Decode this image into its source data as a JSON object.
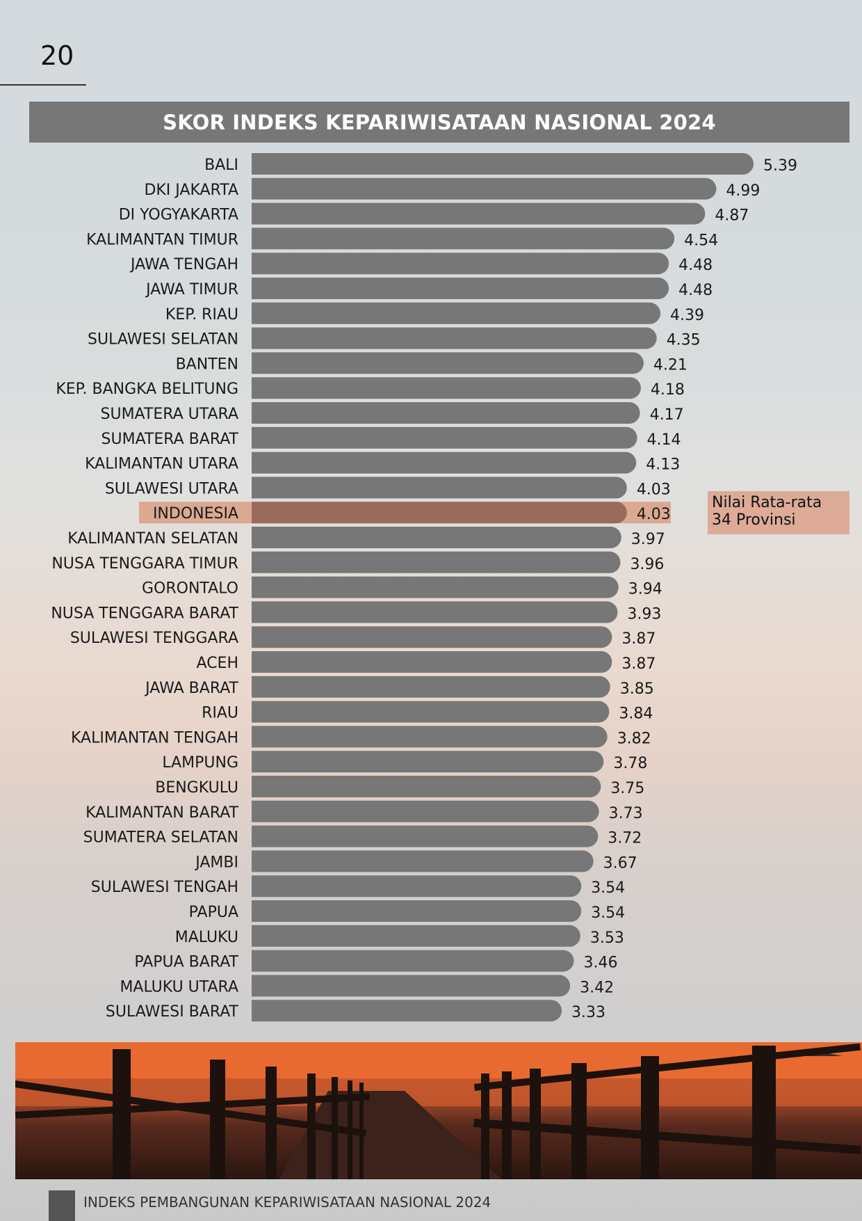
{
  "page": {
    "number": "20"
  },
  "chart_data": {
    "type": "bar",
    "orientation": "horizontal",
    "title": "SKOR INDEKS KEPARIWISATAAN NASIONAL 2024",
    "categories": [
      "BALI",
      "DKI JAKARTA",
      "DI YOGYAKARTA",
      "KALIMANTAN TIMUR",
      "JAWA TENGAH",
      "JAWA TIMUR",
      "KEP. RIAU",
      "SULAWESI SELATAN",
      "BANTEN",
      "KEP. BANGKA BELITUNG",
      "SUMATERA UTARA",
      "SUMATERA BARAT",
      "KALIMANTAN UTARA",
      "SULAWESI UTARA",
      "INDONESIA",
      "KALIMANTAN SELATAN",
      "NUSA TENGGARA TIMUR",
      "GORONTALO",
      "NUSA TENGGARA BARAT",
      "SULAWESI TENGGARA",
      "ACEH",
      "JAWA BARAT",
      "RIAU",
      "KALIMANTAN TENGAH",
      "LAMPUNG",
      "BENGKULU",
      "KALIMANTAN BARAT",
      "SUMATERA SELATAN",
      "JAMBI",
      "SULAWESI TENGAH",
      "PAPUA",
      "MALUKU",
      "PAPUA BARAT",
      "MALUKU UTARA",
      "SULAWESI BARAT"
    ],
    "values": [
      5.39,
      4.99,
      4.87,
      4.54,
      4.48,
      4.48,
      4.39,
      4.35,
      4.21,
      4.18,
      4.17,
      4.14,
      4.13,
      4.03,
      4.03,
      3.97,
      3.96,
      3.94,
      3.93,
      3.87,
      3.87,
      3.85,
      3.84,
      3.82,
      3.78,
      3.75,
      3.73,
      3.72,
      3.67,
      3.54,
      3.54,
      3.53,
      3.46,
      3.42,
      3.33
    ],
    "value_labels": [
      "5.39",
      "4.99",
      "4.87",
      "4.54",
      "4.48",
      "4.48",
      "4.39",
      "4.35",
      "4.21",
      "4.18",
      "4.17",
      "4.14",
      "4.13",
      "4.03",
      "4.03",
      "3.97",
      "3.96",
      "3.94",
      "3.93",
      "3.87",
      "3.87",
      "3.85",
      "3.84",
      "3.82",
      "3.78",
      "3.75",
      "3.73",
      "3.72",
      "3.67",
      "3.54",
      "3.54",
      "3.53",
      "3.46",
      "3.42",
      "3.33"
    ],
    "highlight": {
      "category": "INDONESIA",
      "color": "#c98770"
    },
    "bar_color": "#777777",
    "annotation": {
      "line1": "Nilai Rata-rata",
      "line2": "34 Provinsi"
    },
    "xlim": [
      0,
      5.39
    ],
    "grid": false,
    "legend": "none"
  },
  "footer": {
    "text": "INDEKS PEMBANGUNAN KEPARIWISATAAN NASIONAL 2024"
  }
}
